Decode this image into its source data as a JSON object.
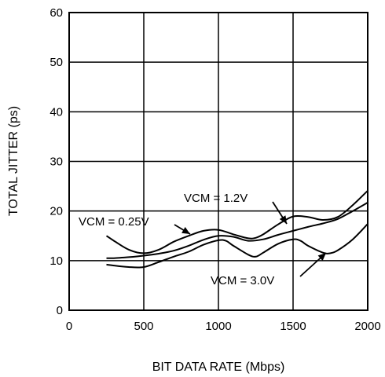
{
  "chart_data": {
    "type": "line",
    "title": "",
    "xlabel": "BIT DATA RATE (Mbps)",
    "ylabel": "TOTAL JITTER (ps)",
    "xlim": [
      0,
      2000
    ],
    "ylim": [
      0,
      60
    ],
    "xticks": [
      0,
      500,
      1000,
      1500,
      2000
    ],
    "yticks": [
      0,
      10,
      20,
      30,
      40,
      50,
      60
    ],
    "grid": true,
    "legend": "none",
    "line_color": "#000000",
    "series": [
      {
        "name": "VCM = 0.25V",
        "x": [
          250,
          300,
          400,
          500,
          600,
          700,
          800,
          900,
          1000,
          1100,
          1200,
          1250,
          1300,
          1400,
          1500,
          1600,
          1700,
          1800,
          1900,
          2000
        ],
        "y": [
          15.0,
          14.0,
          12.2,
          11.5,
          12.2,
          13.8,
          15.0,
          16.0,
          16.2,
          15.3,
          14.5,
          14.6,
          15.3,
          17.3,
          18.9,
          18.8,
          18.2,
          18.8,
          21.2,
          24.1
        ]
      },
      {
        "name": "VCM = 1.2V",
        "x": [
          250,
          300,
          400,
          500,
          600,
          700,
          800,
          900,
          1000,
          1100,
          1200,
          1300,
          1400,
          1500,
          1600,
          1700,
          1800,
          1900,
          2000
        ],
        "y": [
          10.5,
          10.5,
          10.7,
          11.0,
          11.4,
          12.0,
          13.0,
          14.2,
          15.0,
          14.8,
          14.0,
          14.3,
          15.2,
          16.0,
          16.8,
          17.5,
          18.4,
          20.0,
          21.7
        ]
      },
      {
        "name": "VCM = 3.0V",
        "x": [
          250,
          300,
          400,
          500,
          600,
          700,
          800,
          900,
          1000,
          1050,
          1100,
          1200,
          1250,
          1300,
          1400,
          1500,
          1550,
          1600,
          1700,
          1750,
          1800,
          1900,
          2000
        ],
        "y": [
          9.2,
          9.0,
          8.7,
          8.7,
          9.7,
          10.8,
          11.8,
          13.2,
          14.1,
          14.0,
          13.0,
          11.2,
          10.8,
          11.6,
          13.4,
          14.3,
          14.0,
          13.0,
          11.6,
          11.5,
          12.1,
          14.3,
          17.4
        ]
      }
    ],
    "annotations": [
      {
        "text": "VCM = 0.25V",
        "series": "VCM = 0.25V"
      },
      {
        "text": "VCM = 1.2V",
        "series": "VCM = 1.2V"
      },
      {
        "text": "VCM = 3.0V",
        "series": "VCM = 3.0V"
      }
    ]
  }
}
